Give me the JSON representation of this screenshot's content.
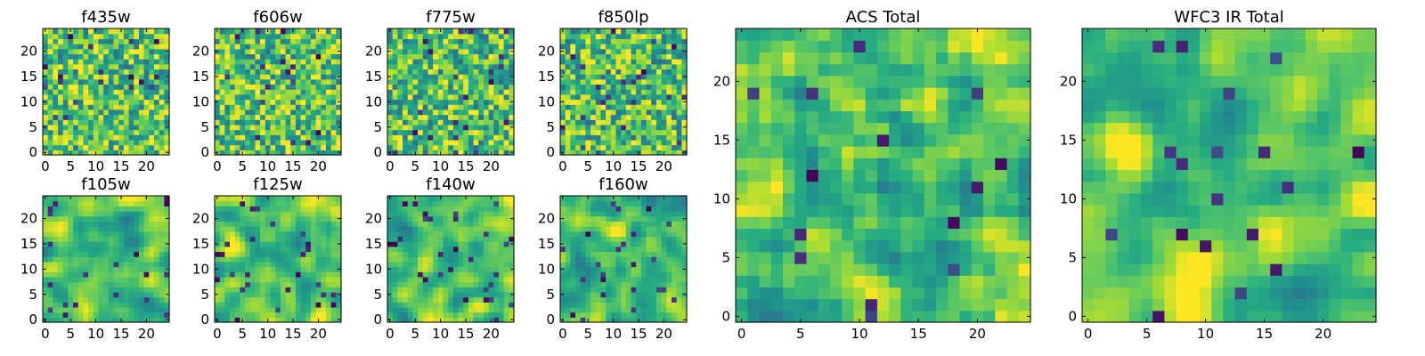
{
  "chart_data": {
    "type": "heatmap",
    "colormap": "viridis",
    "grid": false,
    "grid_size": 25,
    "panels": [
      {
        "id": "f435w",
        "title": "f435w",
        "xlim": [
          0,
          24
        ],
        "ylim": [
          0,
          24
        ],
        "x_ticks": [
          0,
          5,
          10,
          15,
          20
        ],
        "y_ticks": [
          0,
          5,
          10,
          15,
          20
        ],
        "dominant_level": 0.72,
        "seed": 11
      },
      {
        "id": "f606w",
        "title": "f606w",
        "xlim": [
          0,
          24
        ],
        "ylim": [
          0,
          24
        ],
        "x_ticks": [
          0,
          5,
          10,
          15,
          20
        ],
        "y_ticks": [
          0,
          5,
          10,
          15,
          20
        ],
        "dominant_level": 0.72,
        "seed": 23
      },
      {
        "id": "f775w",
        "title": "f775w",
        "xlim": [
          0,
          24
        ],
        "ylim": [
          0,
          24
        ],
        "x_ticks": [
          0,
          5,
          10,
          15,
          20
        ],
        "y_ticks": [
          0,
          5,
          10,
          15,
          20
        ],
        "dominant_level": 0.7,
        "seed": 37
      },
      {
        "id": "f850lp",
        "title": "f850lp",
        "xlim": [
          0,
          24
        ],
        "ylim": [
          0,
          24
        ],
        "x_ticks": [
          0,
          5,
          10,
          15,
          20
        ],
        "y_ticks": [
          0,
          5,
          10,
          15,
          20
        ],
        "dominant_level": 0.7,
        "seed": 41
      },
      {
        "id": "f105w",
        "title": "f105w",
        "xlim": [
          0,
          24
        ],
        "ylim": [
          0,
          24
        ],
        "x_ticks": [
          0,
          5,
          10,
          15,
          20
        ],
        "y_ticks": [
          0,
          5,
          10,
          15,
          20
        ],
        "dominant_level": 0.74,
        "seed": 53,
        "smooth": 2
      },
      {
        "id": "f125w",
        "title": "f125w",
        "xlim": [
          0,
          24
        ],
        "ylim": [
          0,
          24
        ],
        "x_ticks": [
          0,
          5,
          10,
          15,
          20
        ],
        "y_ticks": [
          0,
          5,
          10,
          15,
          20
        ],
        "dominant_level": 0.76,
        "seed": 67,
        "smooth": 2
      },
      {
        "id": "f140w",
        "title": "f140w",
        "xlim": [
          0,
          24
        ],
        "ylim": [
          0,
          24
        ],
        "x_ticks": [
          0,
          5,
          10,
          15,
          20
        ],
        "y_ticks": [
          0,
          5,
          10,
          15,
          20
        ],
        "dominant_level": 0.74,
        "seed": 71,
        "smooth": 2
      },
      {
        "id": "f160w",
        "title": "f160w",
        "xlim": [
          0,
          24
        ],
        "ylim": [
          0,
          24
        ],
        "x_ticks": [
          0,
          5,
          10,
          15,
          20
        ],
        "y_ticks": [
          0,
          5,
          10,
          15,
          20
        ],
        "dominant_level": 0.72,
        "seed": 83,
        "smooth": 2
      },
      {
        "id": "acs_total",
        "title": "ACS Total",
        "xlim": [
          0,
          24
        ],
        "ylim": [
          0,
          24
        ],
        "x_ticks": [
          0,
          5,
          10,
          15,
          20
        ],
        "y_ticks": [
          0,
          5,
          10,
          15,
          20
        ],
        "dominant_level": 0.74,
        "seed": 97,
        "smooth": 1
      },
      {
        "id": "wfc3_ir_total",
        "title": "WFC3 IR Total",
        "xlim": [
          0,
          24
        ],
        "ylim": [
          0,
          24
        ],
        "x_ticks": [
          0,
          5,
          10,
          15,
          20
        ],
        "y_ticks": [
          0,
          5,
          10,
          15,
          20
        ],
        "dominant_level": 0.76,
        "seed": 101,
        "smooth": 2
      }
    ]
  }
}
